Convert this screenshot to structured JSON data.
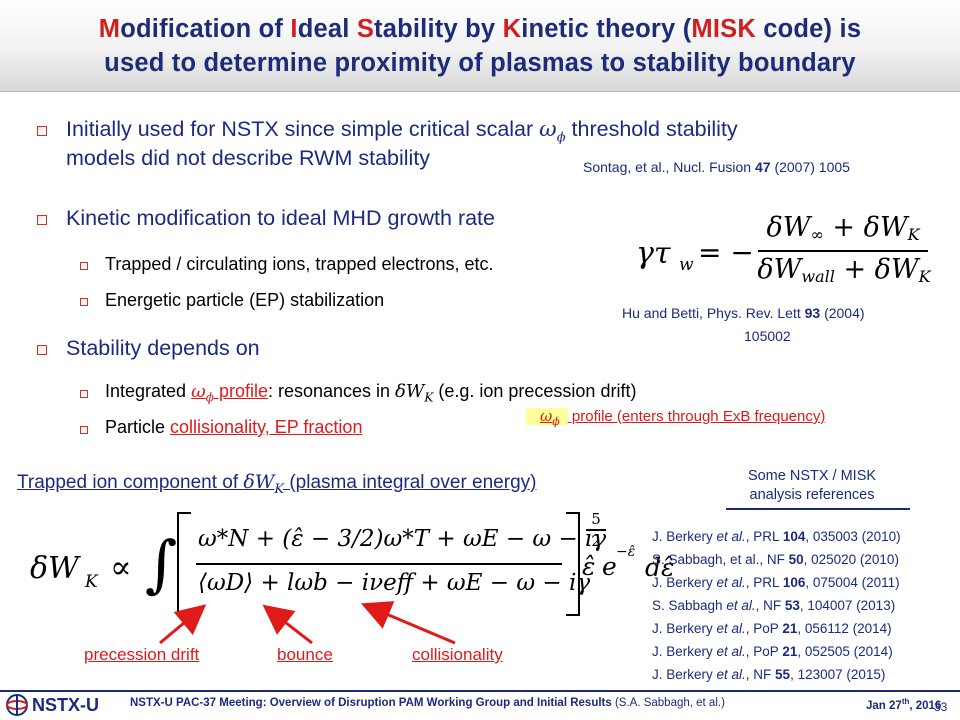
{
  "title": {
    "line1": [
      "M",
      "odification of ",
      "I",
      "deal ",
      "S",
      "tability by ",
      "K",
      "inetic theory (",
      "MISK",
      " code) is"
    ],
    "line2": "used to determine proximity of plasmas to stability boundary"
  },
  "bullets": {
    "b1": {
      "line1_pre": "Initially used for NSTX since simple critical scalar ",
      "omega_phi": "ω",
      "phi_sub": "ϕ",
      "line1_post": " threshold stability",
      "line2": "models did not describe RWM stability"
    },
    "b1_ref": {
      "pre": "Sontag, et al., Nucl. Fusion ",
      "vol": "47",
      "post": " (2007) 1005"
    },
    "b2": {
      "text": "Kinetic modification to ideal MHD growth rate",
      "sub1": "Trapped / circulating ions, trapped electrons, etc.",
      "sub2": "Energetic particle (EP) stabilization"
    },
    "b2_ref": {
      "line1_pre": "Hu and Betti, Phys. Rev. Lett ",
      "vol": "93",
      "line1_post": " (2004)",
      "line2": "105002"
    },
    "b3": {
      "text": "Stability depends on",
      "sub1_pre": "Integrated ",
      "sub1_omega": "ω",
      "sub1_phi": "ϕ",
      "sub1_link": " profile",
      "sub1_mid": ": resonances in ",
      "sub1_dw": "δW",
      "sub1_k": "K",
      "sub1_post": " (e.g. ion precession drift)",
      "sub2_pre": "Particle ",
      "sub2_link": "collisionality, EP fraction"
    },
    "callout": {
      "omega": "ω",
      "phi": "ϕ",
      "text": " profile (enters through ExB frequency)"
    }
  },
  "equation_growth": {
    "lhs": "γτ",
    "lhs_sub": "w",
    "eq": "= −",
    "num": "δW",
    "num_sub": "∞",
    "plus1": " + δW",
    "plus1_sub": "K",
    "den": "δW",
    "den_sub": "wall",
    "plus2": " + δW",
    "plus2_sub": "K"
  },
  "trapped_ion": {
    "pre": "Trapped ion component of ",
    "dw": "δW",
    "k": "K",
    "post": " (plasma integral over energy)"
  },
  "equation_dwk": {
    "lhs": "δW",
    "lhs_sub": "K",
    "prop": "∝",
    "integral": "∫",
    "num": "ω*N + (ε̂ − 3/2)ω*T + ωE − ω − iγ",
    "den": "⟨ωD⟩ + lωb − iνeff + ωE − ω − iγ",
    "exp_num": "5",
    "exp_den": "2",
    "tail": "e",
    "tail_exp": "−ε̂",
    "d": "dε̂"
  },
  "arrow_labels": {
    "precession": "precession drift",
    "bounce": "bounce",
    "collisionality": "collisionality"
  },
  "refs": {
    "heading1": "Some NSTX / MISK",
    "heading2": "analysis references",
    "items": [
      {
        "pre": "J. Berkery ",
        "etal": "et al.",
        "j": ", PRL ",
        "vol": "104",
        "post": ", 035003 (2010)"
      },
      {
        "pre": "S. Sabbagh, et al., NF ",
        "etal": "",
        "j": "",
        "vol": "50",
        "post": ", 025020 (2010)"
      },
      {
        "pre": "J. Berkery ",
        "etal": "et al.",
        "j": ", PRL ",
        "vol": "106",
        "post": ", 075004 (2011)"
      },
      {
        "pre": "S. Sabbagh ",
        "etal": "et al.",
        "j": ", NF ",
        "vol": "53",
        "post": ", 104007 (2013)"
      },
      {
        "pre": "J. Berkery ",
        "etal": "et al.",
        "j": ", PoP ",
        "vol": "21",
        "post": ", 056112 (2014)"
      },
      {
        "pre": "J. Berkery ",
        "etal": "et al.",
        "j": ", PoP ",
        "vol": "21",
        "post": ", 052505 (2014)"
      },
      {
        "pre": "J. Berkery ",
        "etal": "et al.",
        "j": ", NF ",
        "vol": "55",
        "post": ", 123007 (2015)"
      }
    ]
  },
  "footer": {
    "logo": "NSTX-U",
    "text_bold": "NSTX-U PAC-37 Meeting: Overview of Disruption PAM Working Group and Initial Results",
    "text_plain": " (S.A. Sabbagh, et al.)",
    "date": "Jan 27",
    "date_sup": "th",
    "date_year": ", 2016",
    "page": "33"
  },
  "colors": {
    "title_blue": "#1c2c79",
    "accent_red": "#d01f1f",
    "text_blue": "#1b2a80",
    "highlight": "#ffff99"
  }
}
